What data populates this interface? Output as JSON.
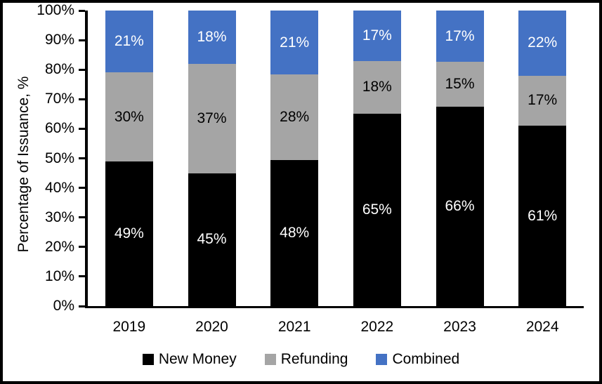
{
  "chart_data": {
    "type": "bar",
    "variant": "stacked-percentage",
    "title": "",
    "ylabel": "Percentage of Issuance, %",
    "xlabel": "",
    "categories": [
      "2019",
      "2020",
      "2021",
      "2022",
      "2023",
      "2024"
    ],
    "series": [
      {
        "name": "New Money",
        "color": "#000000",
        "label_color": "#ffffff",
        "values": [
          49,
          45,
          48,
          65,
          66,
          61
        ]
      },
      {
        "name": "Refunding",
        "color": "#a5a5a5",
        "label_color": "#000000",
        "values": [
          30,
          37,
          28,
          18,
          15,
          17
        ]
      },
      {
        "name": "Combined",
        "color": "#4472c4",
        "label_color": "#ffffff",
        "values": [
          21,
          18,
          21,
          17,
          17,
          22
        ]
      }
    ],
    "value_suffix": "%",
    "y_ticks": [
      "100%",
      "90%",
      "80%",
      "70%",
      "60%",
      "50%",
      "40%",
      "30%",
      "20%",
      "10%",
      "0%"
    ],
    "ylim": [
      0,
      100
    ],
    "grid": false,
    "legend_position": "bottom"
  }
}
